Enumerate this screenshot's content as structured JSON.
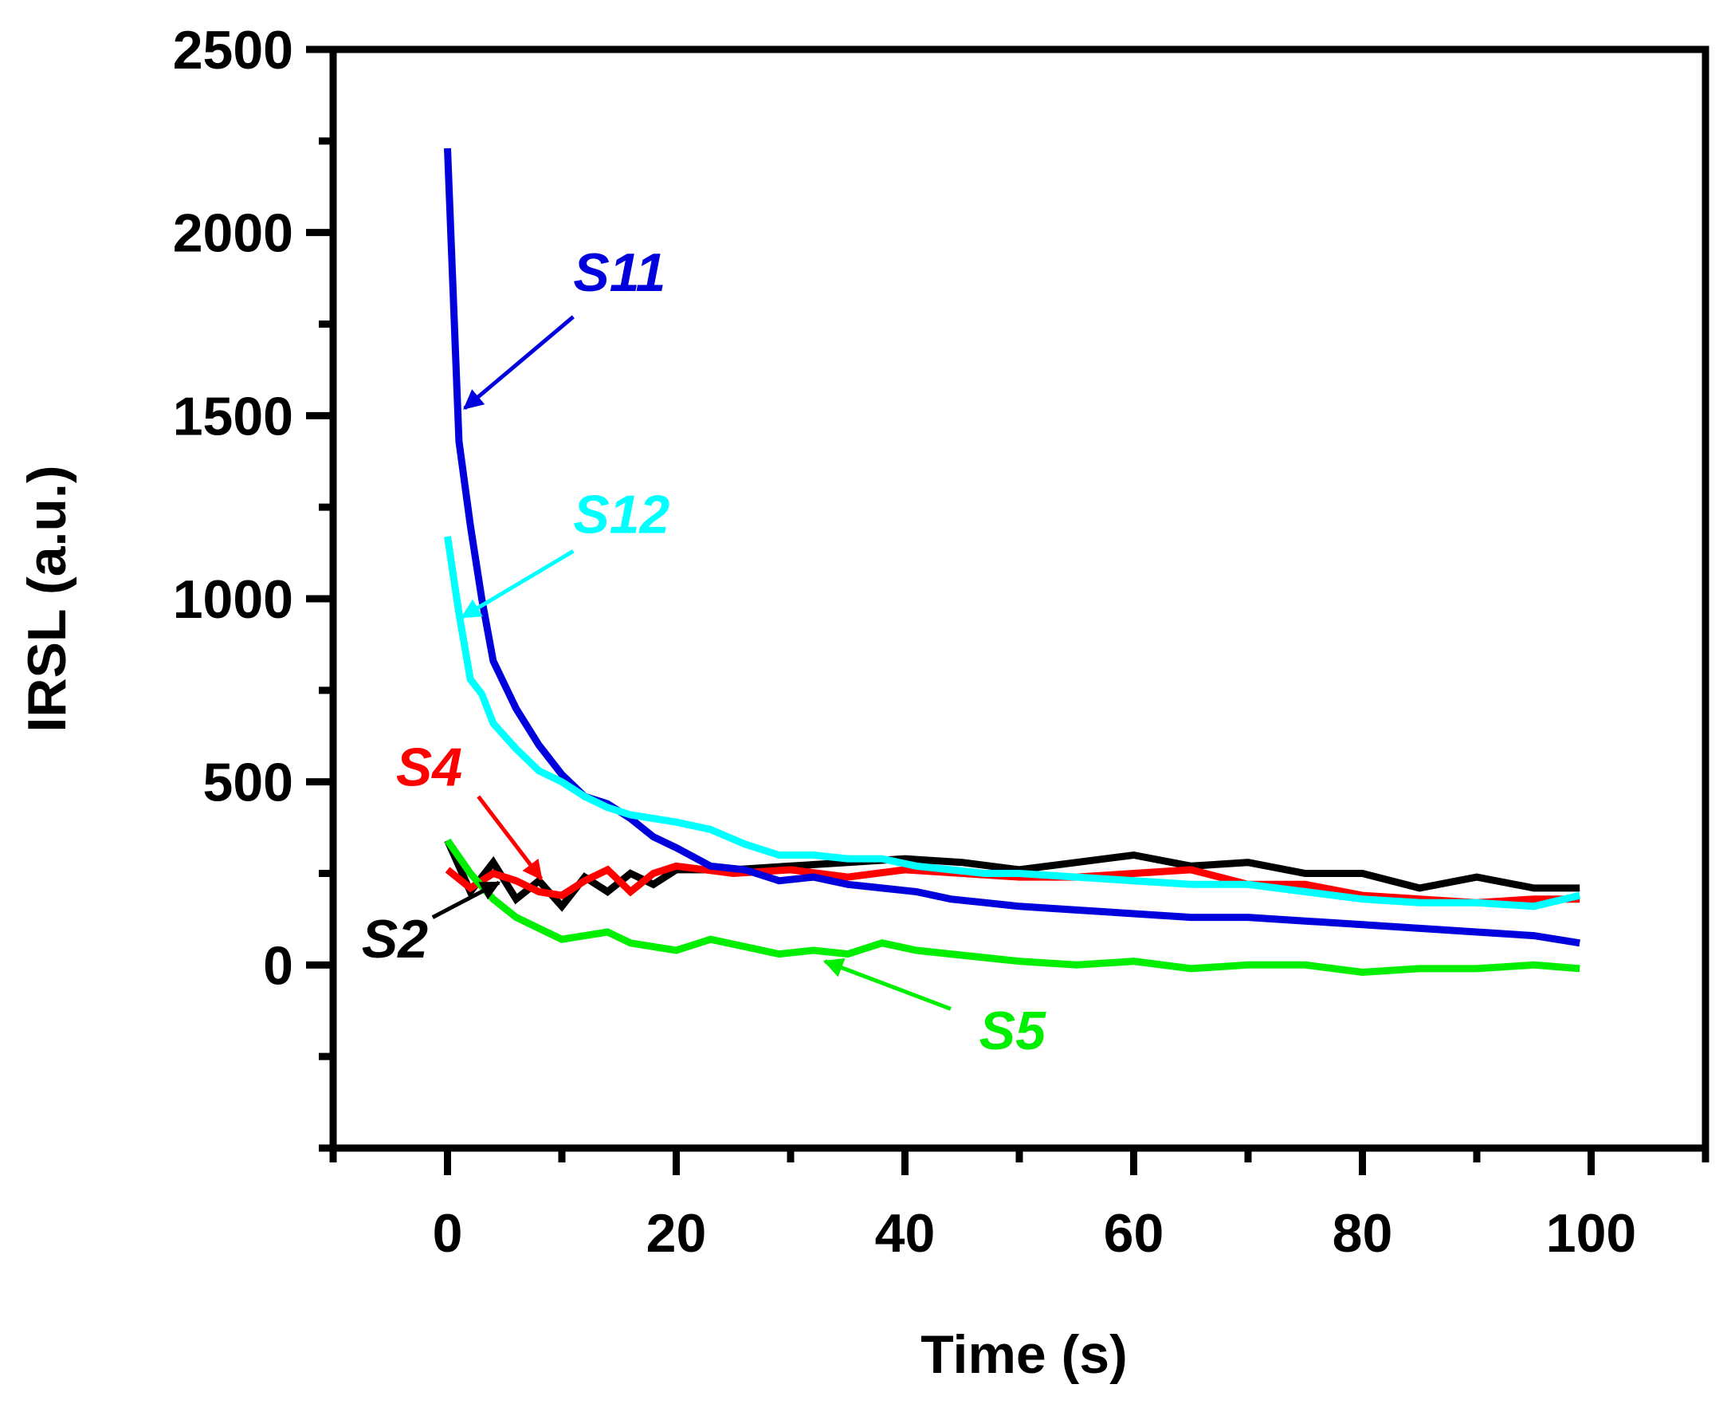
{
  "chart_data": {
    "type": "line",
    "title": "",
    "xlabel": "Time (s)",
    "ylabel": "IRSL (a.u.)",
    "xlim": [
      -10,
      110
    ],
    "ylim": [
      -500,
      2500
    ],
    "xticks": [
      0,
      20,
      40,
      60,
      80,
      100
    ],
    "xtick_labels": [
      "0",
      "20",
      "40",
      "60",
      "80",
      "100"
    ],
    "yticks": [
      0,
      500,
      1000,
      1500,
      2000,
      2500
    ],
    "ytick_labels": [
      "0",
      "500",
      "1000",
      "1500",
      "2000",
      "2500"
    ],
    "grid": false,
    "series": [
      {
        "name": "S2",
        "color": "#000000",
        "x": [
          0,
          2,
          4,
          6,
          8,
          10,
          12,
          14,
          16,
          18,
          20,
          25,
          30,
          35,
          40,
          45,
          50,
          55,
          60,
          65,
          70,
          75,
          80,
          85,
          90,
          95,
          99
        ],
        "y": [
          340,
          200,
          280,
          180,
          230,
          160,
          240,
          200,
          250,
          220,
          260,
          260,
          270,
          280,
          290,
          280,
          260,
          280,
          300,
          270,
          280,
          250,
          250,
          210,
          240,
          210,
          210
        ]
      },
      {
        "name": "S4",
        "color": "#ff0000",
        "x": [
          0,
          2,
          4,
          6,
          8,
          10,
          12,
          14,
          16,
          18,
          20,
          25,
          30,
          35,
          40,
          45,
          50,
          55,
          60,
          65,
          70,
          75,
          80,
          85,
          90,
          95,
          99
        ],
        "y": [
          260,
          210,
          250,
          230,
          200,
          190,
          230,
          260,
          200,
          250,
          270,
          250,
          260,
          240,
          260,
          250,
          240,
          240,
          250,
          260,
          220,
          220,
          190,
          180,
          170,
          180,
          180
        ]
      },
      {
        "name": "S5",
        "color": "#00ee00",
        "x": [
          0,
          2,
          4,
          6,
          8,
          10,
          12,
          14,
          16,
          18,
          20,
          23,
          26,
          29,
          32,
          35,
          38,
          41,
          44,
          47,
          50,
          55,
          60,
          65,
          70,
          75,
          80,
          85,
          90,
          95,
          99
        ],
        "y": [
          340,
          250,
          180,
          130,
          100,
          70,
          80,
          90,
          60,
          50,
          40,
          70,
          50,
          30,
          40,
          30,
          60,
          40,
          30,
          20,
          10,
          0,
          10,
          -10,
          0,
          0,
          -20,
          -10,
          -10,
          0,
          -10
        ]
      },
      {
        "name": "S11",
        "color": "#0000dd",
        "x": [
          0,
          1,
          2,
          3,
          4,
          6,
          8,
          10,
          12,
          14,
          16,
          18,
          20,
          23,
          26,
          29,
          32,
          35,
          38,
          41,
          44,
          47,
          50,
          55,
          60,
          65,
          70,
          75,
          80,
          85,
          90,
          95,
          99
        ],
        "y": [
          2230,
          1430,
          1200,
          1000,
          830,
          700,
          600,
          520,
          460,
          440,
          400,
          350,
          320,
          270,
          260,
          230,
          240,
          220,
          210,
          200,
          180,
          170,
          160,
          150,
          140,
          130,
          130,
          120,
          110,
          100,
          90,
          80,
          60
        ]
      },
      {
        "name": "S12",
        "color": "#00ffff",
        "x": [
          0,
          1,
          2,
          3,
          4,
          6,
          8,
          10,
          12,
          14,
          16,
          18,
          20,
          23,
          26,
          29,
          32,
          35,
          38,
          41,
          44,
          47,
          50,
          55,
          60,
          65,
          70,
          75,
          80,
          85,
          90,
          95,
          99
        ],
        "y": [
          1170,
          960,
          780,
          740,
          660,
          590,
          530,
          500,
          460,
          430,
          410,
          400,
          390,
          370,
          330,
          300,
          300,
          290,
          290,
          270,
          260,
          250,
          250,
          240,
          230,
          220,
          220,
          200,
          180,
          170,
          170,
          160,
          190
        ]
      }
    ],
    "annotations": [
      {
        "text": "S11",
        "color": "#0000dd",
        "label_at": [
          11,
          1840
        ],
        "arrow_from": [
          11,
          1770
        ],
        "arrow_to": [
          1.5,
          1520
        ]
      },
      {
        "text": "S12",
        "color": "#00ffff",
        "label_at": [
          11,
          1180
        ],
        "arrow_from": [
          11,
          1130
        ],
        "arrow_to": [
          1.3,
          950
        ]
      },
      {
        "text": "S4",
        "color": "#ff0000",
        "label_at": [
          -4.5,
          490
        ],
        "arrow_from": [
          2.7,
          460
        ],
        "arrow_to": [
          8.2,
          235
        ]
      },
      {
        "text": "S2",
        "color": "#000000",
        "label_at": [
          -7.5,
          20
        ],
        "arrow_from": [
          -1.3,
          130
        ],
        "arrow_to": [
          4.5,
          225
        ]
      },
      {
        "text": "S5",
        "color": "#00ee00",
        "label_at": [
          46.5,
          -230
        ],
        "arrow_from": [
          44,
          -120
        ],
        "arrow_to": [
          33,
          10
        ]
      }
    ]
  }
}
